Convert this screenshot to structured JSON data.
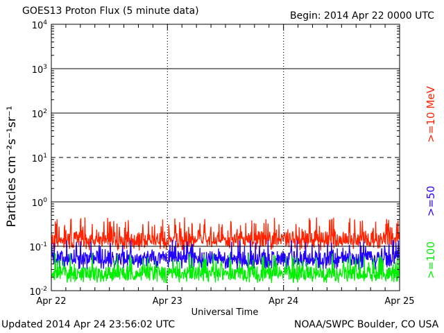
{
  "header": {
    "title": "GOES13 Proton Flux (5 minute data)",
    "begin": "Begin: 2014 Apr 22 0000 UTC"
  },
  "footer": {
    "updated": "Updated 2014 Apr 24 23:56:02 UTC",
    "credit": "NOAA/SWPC Boulder, CO USA"
  },
  "chart_data": {
    "type": "line",
    "title": "GOES13 Proton Flux (5 minute data)",
    "xlabel": "Universal Time",
    "ylabel": "Particles cm⁻²s⁻¹sr⁻¹",
    "y_scale": "log",
    "ylim": [
      0.01,
      10000
    ],
    "y_ticks": [
      {
        "value": 10000,
        "base": "10",
        "exp": "4"
      },
      {
        "value": 1000,
        "base": "10",
        "exp": "3"
      },
      {
        "value": 100,
        "base": "10",
        "exp": "2"
      },
      {
        "value": 10,
        "base": "10",
        "exp": "1"
      },
      {
        "value": 1,
        "base": "10",
        "exp": "0"
      },
      {
        "value": 0.1,
        "base": "10",
        "exp": "-1"
      },
      {
        "value": 0.01,
        "base": "10",
        "exp": "-2"
      }
    ],
    "xlim": [
      0,
      3
    ],
    "x_ticks": [
      {
        "value": 0,
        "label": "Apr 22"
      },
      {
        "value": 1,
        "label": "Apr 23"
      },
      {
        "value": 2,
        "label": "Apr 24"
      },
      {
        "value": 3,
        "label": "Apr 25"
      }
    ],
    "series": [
      {
        "name": ">=10 MeV",
        "color": "#ff2200",
        "typical": 0.15,
        "low": 0.08,
        "high": 0.45
      },
      {
        "name": ">=50",
        "color": "#2200ff",
        "typical": 0.055,
        "low": 0.03,
        "high": 0.14
      },
      {
        "name": ">=100",
        "color": "#00ee00",
        "typical": 0.025,
        "low": 0.015,
        "high": 0.07
      }
    ],
    "legend_placement": "right",
    "grid": true
  }
}
